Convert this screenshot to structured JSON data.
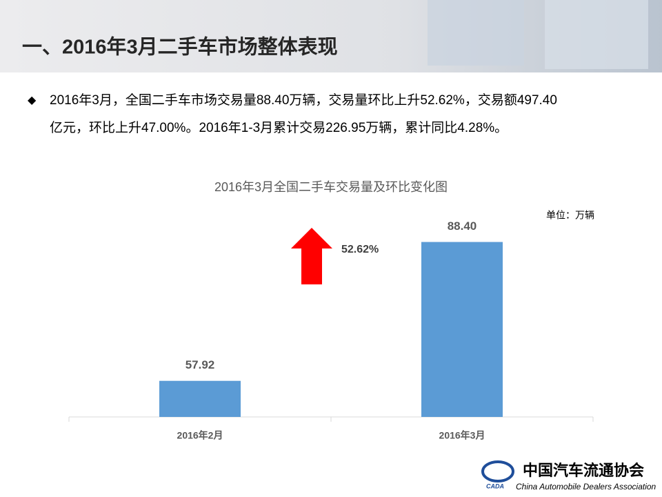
{
  "header": {
    "title": "一、2016年3月二手车市场整体表现"
  },
  "bullet": {
    "lines": [
      "2016年3月，全国二手车市场交易量88.40万辆，交易量环比上升52.62%，交易额497.40",
      "亿元，环比上升47.00%。2016年1-3月累计交易226.95万辆，累计同比4.28%。"
    ]
  },
  "chart_data": {
    "type": "bar",
    "title": "2016年3月全国二手车交易量及环比变化图",
    "unit": "单位：万辆",
    "categories": [
      "2016年2月",
      "2016年3月"
    ],
    "values": [
      57.92,
      88.4
    ],
    "value_labels": [
      "57.92",
      "88.40"
    ],
    "color": "#5b9bd5",
    "ylim": [
      50,
      100
    ],
    "annotation": "52.62%"
  },
  "logo": {
    "mark": "CADA",
    "name": "中国汽车流通协会",
    "english": "China Automobile Dealers Association"
  }
}
